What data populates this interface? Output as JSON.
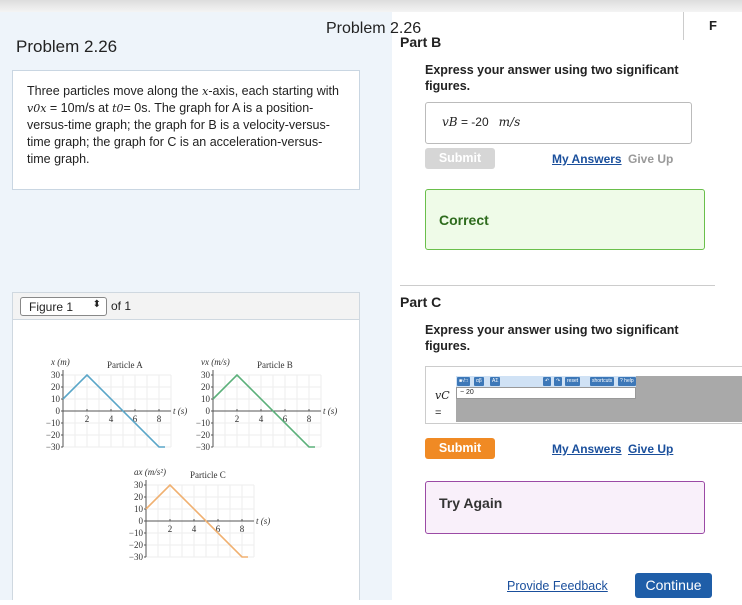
{
  "window": {
    "center_title": "Problem 2.26",
    "corner_letter": "F"
  },
  "left": {
    "title": "Problem 2.26",
    "description": {
      "p1": "Three particles move along the ",
      "xaxis": "x",
      "p2": "-axis, each starting with ",
      "v0": "v0x",
      "p3": " = 10m/s at ",
      "t0": "t0",
      "p4": "= 0s. The graph for A is a position-versus-time graph; the graph for B is a velocity-versus-time graph; the graph for C is an acceleration-versus-time graph."
    },
    "figure": {
      "selected": "Figure 1",
      "of_label": "of 1"
    }
  },
  "chart_data": [
    {
      "type": "line",
      "title": "Particle A",
      "ylabel": "x (m)",
      "xlabel": "t (s)",
      "x": [
        0,
        2,
        8,
        8.5
      ],
      "y": [
        10,
        30,
        -30,
        -30
      ],
      "xticks": [
        2,
        4,
        6,
        8
      ],
      "yticks": [
        30,
        20,
        10,
        0,
        -10,
        -20,
        -30
      ],
      "ylim": [
        -30,
        30
      ],
      "xlim": [
        0,
        9
      ],
      "grid": true,
      "color": "#5aa6c8"
    },
    {
      "type": "line",
      "title": "Particle B",
      "ylabel": "vx (m/s)",
      "xlabel": "t (s)",
      "x": [
        0,
        2,
        8,
        8.5
      ],
      "y": [
        10,
        30,
        -30,
        -30
      ],
      "xticks": [
        2,
        4,
        6,
        8
      ],
      "yticks": [
        30,
        20,
        10,
        0,
        -10,
        -20,
        -30
      ],
      "ylim": [
        -30,
        30
      ],
      "xlim": [
        0,
        9
      ],
      "grid": true,
      "color": "#5bb07a"
    },
    {
      "type": "line",
      "title": "Particle C",
      "ylabel": "ax (m/s²)",
      "xlabel": "t (s)",
      "x": [
        0,
        2,
        8,
        8.5
      ],
      "y": [
        10,
        30,
        -30,
        -30
      ],
      "xticks": [
        2,
        4,
        6,
        8
      ],
      "yticks": [
        30,
        20,
        10,
        0,
        -10,
        -20,
        -30
      ],
      "ylim": [
        -30,
        30
      ],
      "xlim": [
        0,
        9
      ],
      "grid": true,
      "color": "#f0b070"
    }
  ],
  "partB": {
    "title": "Part B",
    "instruction": "Express your answer using two significant figures.",
    "var": "vB",
    "eq": " = ",
    "value": "-20",
    "unit": "m/s",
    "submit": "Submit",
    "my_answers": "My Answers",
    "give_up": "Give Up",
    "result": "Correct"
  },
  "partC": {
    "title": "Part C",
    "instruction": "Express your answer using two significant figures.",
    "var": "vC",
    "eq": "=",
    "value": "− 20",
    "toolbar": [
      "■√□",
      "αβ",
      "ΑΣ",
      "↶",
      "↷",
      "reset",
      "shortcuts",
      "? help"
    ],
    "submit": "Submit",
    "my_answers": "My Answers",
    "give_up": "Give Up",
    "result": "Try Again"
  },
  "footer": {
    "feedback": "Provide Feedback",
    "continue": "Continue"
  },
  "colors": {
    "submit_active": "#f08a24",
    "submit_disabled": "#d6d6d6",
    "correct_border": "#6abf4b",
    "try_again_border": "#9b4aa5",
    "continue": "#1f5ea8"
  }
}
